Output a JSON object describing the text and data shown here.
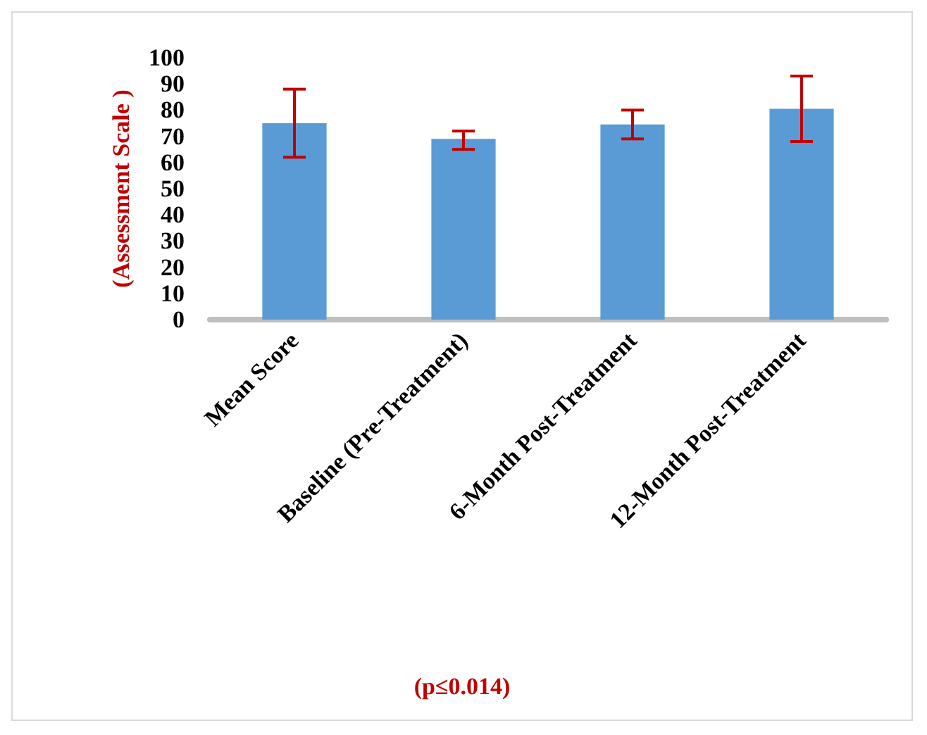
{
  "chart_data": {
    "type": "bar",
    "annotations": [
      "(p≤0.014)"
    ],
    "ylabel": "(Assessment Scale )",
    "categories": [
      "Mean Score",
      "Baseline (Pre-Treatment)",
      "6-Month Post-Treatment",
      "12-Month Post-Treatment"
    ],
    "values": [
      75,
      69,
      74.5,
      80.5
    ],
    "errors": [
      [
        62,
        88
      ],
      [
        65,
        72
      ],
      [
        69,
        80
      ],
      [
        68,
        93
      ]
    ],
    "color": "#5b9bd5",
    "ylim": [
      0,
      100
    ],
    "yticks": [
      0,
      10,
      20,
      30,
      40,
      50,
      60,
      70,
      80,
      90,
      100
    ],
    "grid": false
  }
}
